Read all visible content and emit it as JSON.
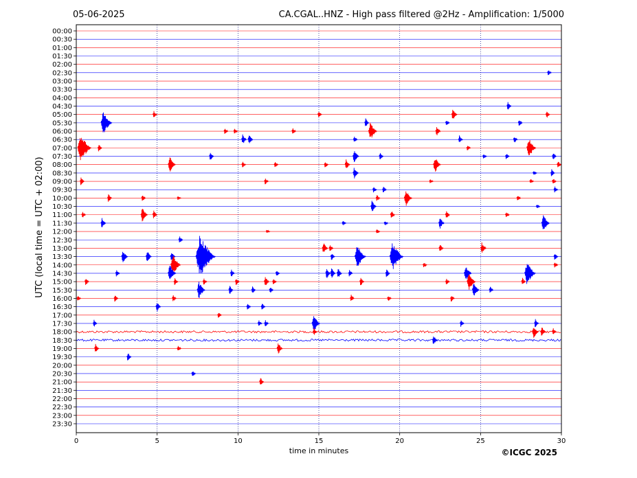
{
  "header": {
    "date": "05-06-2025",
    "title": "CA.CGAL..HNZ - High pass filtered @2Hz - Amplification: 1/5000"
  },
  "footer": {
    "copyright": "©ICGC 2025"
  },
  "colors": {
    "red_trace": "#ff0000",
    "blue_trace": "#0000ff",
    "grid": "#00007f"
  },
  "chart_data": {
    "type": "line",
    "title": "CA.CGAL..HNZ - High pass filtered @2Hz - Amplification: 1/5000",
    "subtitle": "05-06-2025",
    "xlabel": "time in minutes",
    "ylabel": "UTC (local time = UTC + 02:00)",
    "xlim": [
      0,
      30
    ],
    "x_ticks": [
      "0",
      "5",
      "10",
      "15",
      "20",
      "25",
      "30"
    ],
    "grid": "vertical dotted lines at 5-minute intervals",
    "row_labels": [
      "00:00",
      "00:30",
      "01:00",
      "01:30",
      "02:00",
      "02:30",
      "03:00",
      "03:30",
      "04:00",
      "04:30",
      "05:00",
      "05:30",
      "06:00",
      "06:30",
      "07:00",
      "07:30",
      "08:00",
      "08:30",
      "09:00",
      "09:30",
      "10:00",
      "10:30",
      "11:00",
      "11:30",
      "12:00",
      "12:30",
      "13:00",
      "13:30",
      "14:00",
      "14:30",
      "15:00",
      "15:30",
      "16:00",
      "16:30",
      "17:00",
      "17:30",
      "18:00",
      "18:30",
      "19:00",
      "19:30",
      "20:00",
      "20:30",
      "21:00",
      "21:30",
      "22:00",
      "22:30",
      "23:00",
      "23:30"
    ],
    "trace_colors_alternate": [
      "red",
      "blue"
    ],
    "noisy_rows": [
      "18:00",
      "18:30"
    ],
    "events": [
      {
        "row": "02:30",
        "minute": 29.2,
        "amplitude": 5
      },
      {
        "row": "04:30",
        "minute": 26.7,
        "amplitude": 7
      },
      {
        "row": "05:00",
        "minute": 4.8,
        "amplitude": 6
      },
      {
        "row": "05:00",
        "minute": 15.0,
        "amplitude": 5
      },
      {
        "row": "05:00",
        "minute": 23.3,
        "amplitude": 9
      },
      {
        "row": "05:00",
        "minute": 29.1,
        "amplitude": 6
      },
      {
        "row": "05:30",
        "minute": 1.7,
        "amplitude": 18
      },
      {
        "row": "05:30",
        "minute": 2.0,
        "amplitude": 5
      },
      {
        "row": "05:30",
        "minute": 17.9,
        "amplitude": 7
      },
      {
        "row": "05:30",
        "minute": 22.9,
        "amplitude": 5
      },
      {
        "row": "05:30",
        "minute": 27.4,
        "amplitude": 6
      },
      {
        "row": "06:00",
        "minute": 9.2,
        "amplitude": 5
      },
      {
        "row": "06:00",
        "minute": 9.8,
        "amplitude": 4
      },
      {
        "row": "06:00",
        "minute": 13.4,
        "amplitude": 5
      },
      {
        "row": "06:00",
        "minute": 18.2,
        "amplitude": 14
      },
      {
        "row": "06:00",
        "minute": 22.3,
        "amplitude": 8
      },
      {
        "row": "06:30",
        "minute": 10.3,
        "amplitude": 8
      },
      {
        "row": "06:30",
        "minute": 10.7,
        "amplitude": 8
      },
      {
        "row": "06:30",
        "minute": 17.2,
        "amplitude": 5
      },
      {
        "row": "06:30",
        "minute": 23.7,
        "amplitude": 7
      },
      {
        "row": "06:30",
        "minute": 27.1,
        "amplitude": 6
      },
      {
        "row": "07:00",
        "minute": 0.3,
        "amplitude": 22
      },
      {
        "row": "07:00",
        "minute": 1.4,
        "amplitude": 6
      },
      {
        "row": "07:00",
        "minute": 24.2,
        "amplitude": 5
      },
      {
        "row": "07:00",
        "minute": 28.0,
        "amplitude": 15
      },
      {
        "row": "07:30",
        "minute": 8.3,
        "amplitude": 7
      },
      {
        "row": "07:30",
        "minute": 17.2,
        "amplitude": 10
      },
      {
        "row": "07:30",
        "minute": 18.8,
        "amplitude": 6
      },
      {
        "row": "07:30",
        "minute": 25.2,
        "amplitude": 4
      },
      {
        "row": "07:30",
        "minute": 26.6,
        "amplitude": 5
      },
      {
        "row": "07:30",
        "minute": 29.5,
        "amplitude": 6
      },
      {
        "row": "08:00",
        "minute": 5.8,
        "amplitude": 12
      },
      {
        "row": "08:00",
        "minute": 10.3,
        "amplitude": 5
      },
      {
        "row": "08:00",
        "minute": 12.3,
        "amplitude": 5
      },
      {
        "row": "08:00",
        "minute": 15.4,
        "amplitude": 5
      },
      {
        "row": "08:00",
        "minute": 16.7,
        "amplitude": 8
      },
      {
        "row": "08:00",
        "minute": 22.2,
        "amplitude": 12
      },
      {
        "row": "08:00",
        "minute": 29.8,
        "amplitude": 6
      },
      {
        "row": "08:30",
        "minute": 17.2,
        "amplitude": 9
      },
      {
        "row": "08:30",
        "minute": 28.3,
        "amplitude": 4
      },
      {
        "row": "08:30",
        "minute": 29.4,
        "amplitude": 6
      },
      {
        "row": "09:00",
        "minute": 0.3,
        "amplitude": 7
      },
      {
        "row": "09:00",
        "minute": 11.7,
        "amplitude": 5
      },
      {
        "row": "09:00",
        "minute": 21.9,
        "amplitude": 3
      },
      {
        "row": "09:00",
        "minute": 28.1,
        "amplitude": 4
      },
      {
        "row": "09:00",
        "minute": 29.5,
        "amplitude": 5
      },
      {
        "row": "09:30",
        "minute": 18.4,
        "amplitude": 5
      },
      {
        "row": "09:30",
        "minute": 19.0,
        "amplitude": 5
      },
      {
        "row": "09:30",
        "minute": 29.6,
        "amplitude": 5
      },
      {
        "row": "10:00",
        "minute": 2.0,
        "amplitude": 7
      },
      {
        "row": "10:00",
        "minute": 4.1,
        "amplitude": 6
      },
      {
        "row": "10:00",
        "minute": 6.3,
        "amplitude": 3
      },
      {
        "row": "10:00",
        "minute": 18.6,
        "amplitude": 5
      },
      {
        "row": "10:00",
        "minute": 20.4,
        "amplitude": 13
      },
      {
        "row": "10:00",
        "minute": 27.3,
        "amplitude": 5
      },
      {
        "row": "10:30",
        "minute": 18.3,
        "amplitude": 9
      },
      {
        "row": "10:30",
        "minute": 28.5,
        "amplitude": 3
      },
      {
        "row": "11:00",
        "minute": 0.4,
        "amplitude": 5
      },
      {
        "row": "11:00",
        "minute": 4.1,
        "amplitude": 11
      },
      {
        "row": "11:00",
        "minute": 4.8,
        "amplitude": 7
      },
      {
        "row": "11:00",
        "minute": 19.5,
        "amplitude": 7
      },
      {
        "row": "11:00",
        "minute": 22.9,
        "amplitude": 7
      },
      {
        "row": "11:00",
        "minute": 26.6,
        "amplitude": 5
      },
      {
        "row": "11:30",
        "minute": 1.6,
        "amplitude": 8
      },
      {
        "row": "11:30",
        "minute": 16.5,
        "amplitude": 4
      },
      {
        "row": "11:30",
        "minute": 19.1,
        "amplitude": 4
      },
      {
        "row": "11:30",
        "minute": 22.5,
        "amplitude": 9
      },
      {
        "row": "11:30",
        "minute": 28.9,
        "amplitude": 13
      },
      {
        "row": "12:00",
        "minute": 11.8,
        "amplitude": 3
      },
      {
        "row": "12:00",
        "minute": 18.6,
        "amplitude": 4
      },
      {
        "row": "12:30",
        "minute": 6.4,
        "amplitude": 6
      },
      {
        "row": "13:00",
        "minute": 15.3,
        "amplitude": 9
      },
      {
        "row": "13:00",
        "minute": 15.7,
        "amplitude": 5
      },
      {
        "row": "13:00",
        "minute": 22.5,
        "amplitude": 7
      },
      {
        "row": "13:00",
        "minute": 25.1,
        "amplitude": 9
      },
      {
        "row": "13:30",
        "minute": 2.9,
        "amplitude": 10
      },
      {
        "row": "13:30",
        "minute": 4.4,
        "amplitude": 9
      },
      {
        "row": "13:30",
        "minute": 5.9,
        "amplitude": 8
      },
      {
        "row": "13:30",
        "minute": 7.7,
        "amplitude": 32
      },
      {
        "row": "13:30",
        "minute": 15.8,
        "amplitude": 6
      },
      {
        "row": "13:30",
        "minute": 17.4,
        "amplitude": 18
      },
      {
        "row": "13:30",
        "minute": 19.6,
        "amplitude": 22
      },
      {
        "row": "13:30",
        "minute": 29.6,
        "amplitude": 6
      },
      {
        "row": "14:00",
        "minute": 6.0,
        "amplitude": 16
      },
      {
        "row": "14:00",
        "minute": 21.5,
        "amplitude": 4
      },
      {
        "row": "14:00",
        "minute": 29.6,
        "amplitude": 5
      },
      {
        "row": "14:30",
        "minute": 2.5,
        "amplitude": 6
      },
      {
        "row": "14:30",
        "minute": 5.8,
        "amplitude": 13
      },
      {
        "row": "14:30",
        "minute": 9.6,
        "amplitude": 6
      },
      {
        "row": "14:30",
        "minute": 12.4,
        "amplitude": 5
      },
      {
        "row": "14:30",
        "minute": 15.5,
        "amplitude": 8
      },
      {
        "row": "14:30",
        "minute": 15.8,
        "amplitude": 8
      },
      {
        "row": "14:30",
        "minute": 16.2,
        "amplitude": 8
      },
      {
        "row": "14:30",
        "minute": 16.9,
        "amplitude": 6
      },
      {
        "row": "14:30",
        "minute": 19.2,
        "amplitude": 7
      },
      {
        "row": "14:30",
        "minute": 24.1,
        "amplitude": 12
      },
      {
        "row": "14:30",
        "minute": 27.9,
        "amplitude": 18
      },
      {
        "row": "15:00",
        "minute": 0.6,
        "amplitude": 6
      },
      {
        "row": "15:00",
        "minute": 6.1,
        "amplitude": 6
      },
      {
        "row": "15:00",
        "minute": 7.9,
        "amplitude": 5
      },
      {
        "row": "15:00",
        "minute": 9.9,
        "amplitude": 6
      },
      {
        "row": "15:00",
        "minute": 11.7,
        "amplitude": 8
      },
      {
        "row": "15:00",
        "minute": 12.2,
        "amplitude": 5
      },
      {
        "row": "15:00",
        "minute": 17.6,
        "amplitude": 7
      },
      {
        "row": "15:00",
        "minute": 22.9,
        "amplitude": 5
      },
      {
        "row": "15:00",
        "minute": 24.3,
        "amplitude": 14
      },
      {
        "row": "15:00",
        "minute": 27.6,
        "amplitude": 6
      },
      {
        "row": "15:30",
        "minute": 7.6,
        "amplitude": 13
      },
      {
        "row": "15:30",
        "minute": 9.5,
        "amplitude": 7
      },
      {
        "row": "15:30",
        "minute": 10.9,
        "amplitude": 6
      },
      {
        "row": "15:30",
        "minute": 12.0,
        "amplitude": 5
      },
      {
        "row": "15:30",
        "minute": 24.6,
        "amplitude": 11
      },
      {
        "row": "15:30",
        "minute": 25.6,
        "amplitude": 6
      },
      {
        "row": "16:00",
        "minute": 0.1,
        "amplitude": 4
      },
      {
        "row": "16:00",
        "minute": 2.4,
        "amplitude": 6
      },
      {
        "row": "16:00",
        "minute": 6.0,
        "amplitude": 6
      },
      {
        "row": "16:00",
        "minute": 17.0,
        "amplitude": 6
      },
      {
        "row": "16:00",
        "minute": 19.3,
        "amplitude": 5
      },
      {
        "row": "16:00",
        "minute": 23.2,
        "amplitude": 6
      },
      {
        "row": "16:30",
        "minute": 5.0,
        "amplitude": 8
      },
      {
        "row": "16:30",
        "minute": 10.6,
        "amplitude": 5
      },
      {
        "row": "16:30",
        "minute": 11.5,
        "amplitude": 6
      },
      {
        "row": "17:00",
        "minute": 8.8,
        "amplitude": 5
      },
      {
        "row": "17:30",
        "minute": 1.1,
        "amplitude": 6
      },
      {
        "row": "17:30",
        "minute": 11.3,
        "amplitude": 5
      },
      {
        "row": "17:30",
        "minute": 11.7,
        "amplitude": 6
      },
      {
        "row": "17:30",
        "minute": 14.7,
        "amplitude": 13
      },
      {
        "row": "17:30",
        "minute": 23.8,
        "amplitude": 6
      },
      {
        "row": "17:30",
        "minute": 28.4,
        "amplitude": 7
      },
      {
        "row": "18:00",
        "minute": 14.7,
        "amplitude": 6
      },
      {
        "row": "18:00",
        "minute": 28.3,
        "amplitude": 10
      },
      {
        "row": "18:00",
        "minute": 28.8,
        "amplitude": 8
      },
      {
        "row": "18:00",
        "minute": 29.5,
        "amplitude": 6
      },
      {
        "row": "18:30",
        "minute": 22.1,
        "amplitude": 8
      },
      {
        "row": "19:00",
        "minute": 1.2,
        "amplitude": 7
      },
      {
        "row": "19:00",
        "minute": 6.3,
        "amplitude": 5
      },
      {
        "row": "19:00",
        "minute": 12.5,
        "amplitude": 9
      },
      {
        "row": "19:30",
        "minute": 3.2,
        "amplitude": 7
      },
      {
        "row": "20:30",
        "minute": 7.2,
        "amplitude": 5
      },
      {
        "row": "21:00",
        "minute": 11.4,
        "amplitude": 7
      }
    ]
  }
}
